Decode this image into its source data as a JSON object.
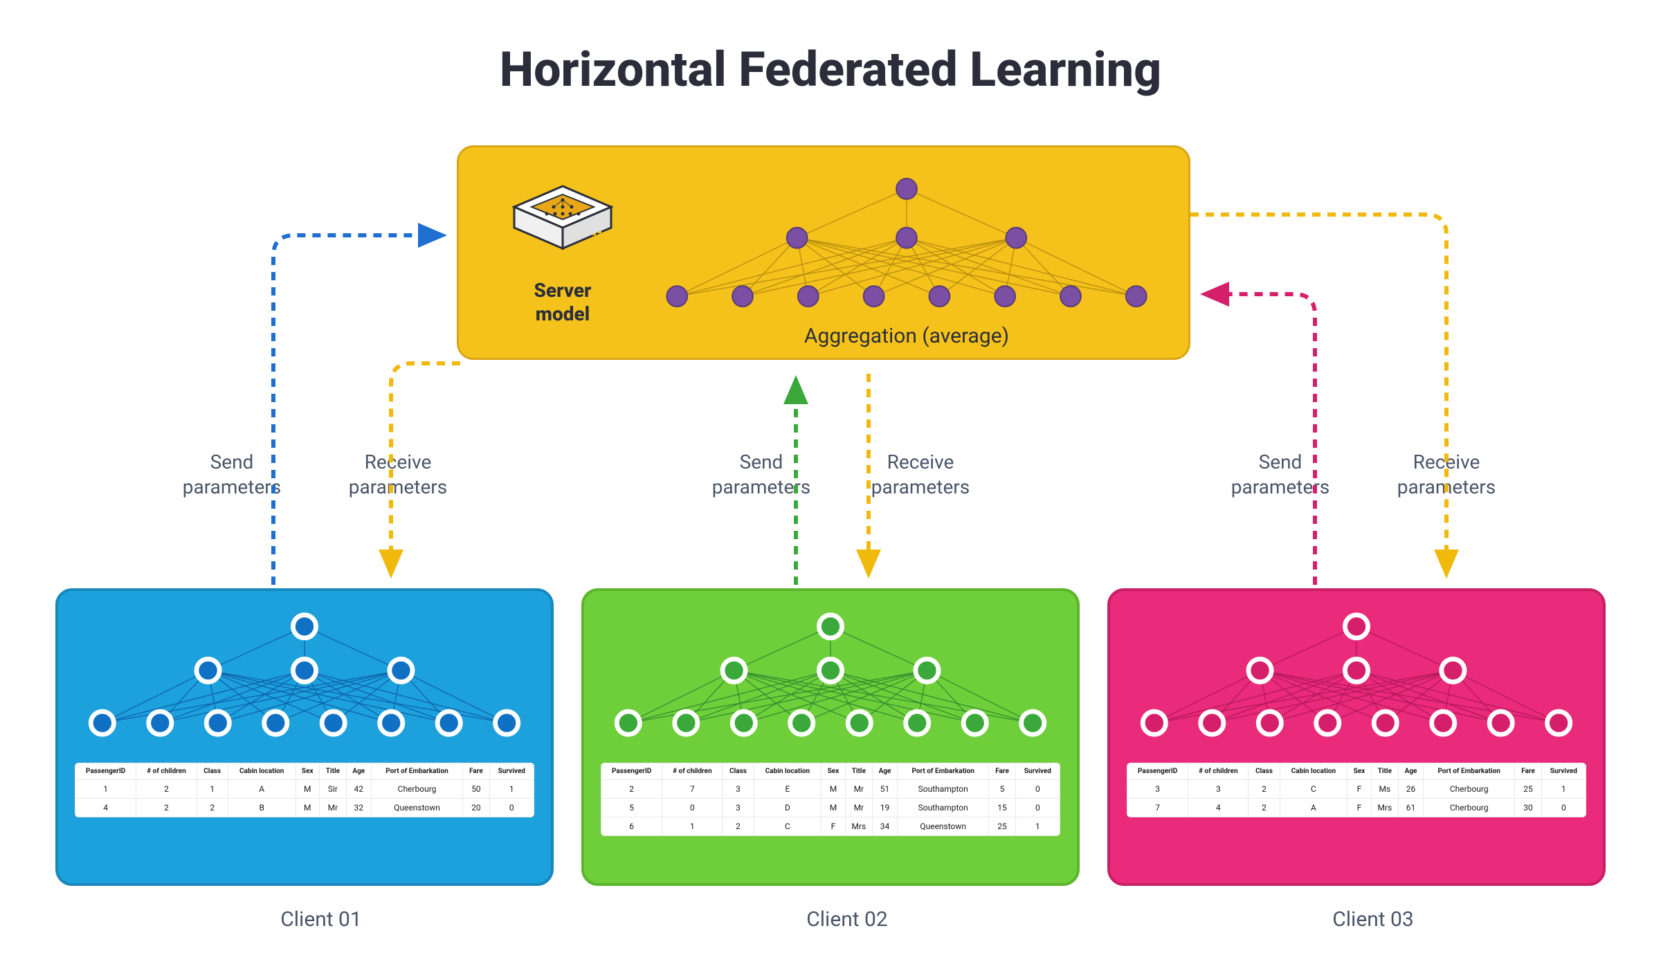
{
  "title": "Horizontal Federated Learning",
  "server": {
    "label": "Server\nmodel",
    "aggregation_label": "Aggregation (average)",
    "panel_bg": "#f5c21b",
    "panel_border": "#d9a514",
    "node_fill": "#7b4fa3",
    "node_stroke": "#5a3a7a",
    "edge_color": "#b38a10"
  },
  "network": {
    "layers": [
      1,
      3,
      8
    ]
  },
  "labels": {
    "send": "Send\nparameters",
    "receive": "Receive\nparameters"
  },
  "arrow_colors": {
    "send_c1": "#1f6fd1",
    "send_c2": "#3aa83a",
    "send_c3": "#d61f6a",
    "receive": "#f0b90b"
  },
  "clients": [
    {
      "label": "Client 01",
      "panel_bg": "#1da1dc",
      "panel_border": "#1788bd",
      "node_fill": "#1070c4",
      "node_ring": "#ffffff",
      "edge_color": "#0d5fa8",
      "columns": [
        "PassengerID",
        "# of children",
        "Class",
        "Cabin location",
        "Sex",
        "Title",
        "Age",
        "Port of Embarkation",
        "Fare",
        "Survived"
      ],
      "rows": [
        [
          "1",
          "2",
          "1",
          "A",
          "M",
          "Sir",
          "42",
          "Cherbourg",
          "50",
          "1"
        ],
        [
          "4",
          "2",
          "2",
          "B",
          "M",
          "Mr",
          "32",
          "Queenstown",
          "20",
          "0"
        ]
      ]
    },
    {
      "label": "Client 02",
      "panel_bg": "#6fcf3b",
      "panel_border": "#5bb52c",
      "node_fill": "#3aa83a",
      "node_ring": "#ffffff",
      "edge_color": "#2e8a2e",
      "columns": [
        "PassengerID",
        "# of children",
        "Class",
        "Cabin location",
        "Sex",
        "Title",
        "Age",
        "Port of Embarkation",
        "Fare",
        "Survived"
      ],
      "rows": [
        [
          "2",
          "7",
          "3",
          "E",
          "M",
          "Mr",
          "51",
          "Southampton",
          "5",
          "0"
        ],
        [
          "5",
          "0",
          "3",
          "D",
          "M",
          "Mr",
          "19",
          "Southampton",
          "15",
          "0"
        ],
        [
          "6",
          "1",
          "2",
          "C",
          "F",
          "Mrs",
          "34",
          "Queenstown",
          "25",
          "1"
        ]
      ]
    },
    {
      "label": "Client 03",
      "panel_bg": "#ea2a7a",
      "panel_border": "#c91f65",
      "node_fill": "#d61f6a",
      "node_ring": "#ffffff",
      "edge_color": "#b01858",
      "columns": [
        "PassengerID",
        "# of children",
        "Class",
        "Cabin location",
        "Sex",
        "Title",
        "Age",
        "Port of Embarkation",
        "Fare",
        "Survived"
      ],
      "rows": [
        [
          "3",
          "3",
          "2",
          "C",
          "F",
          "Ms",
          "26",
          "Cherbourg",
          "25",
          "1"
        ],
        [
          "7",
          "4",
          "2",
          "A",
          "F",
          "Mrs",
          "61",
          "Cherbourg",
          "30",
          "0"
        ]
      ]
    }
  ]
}
